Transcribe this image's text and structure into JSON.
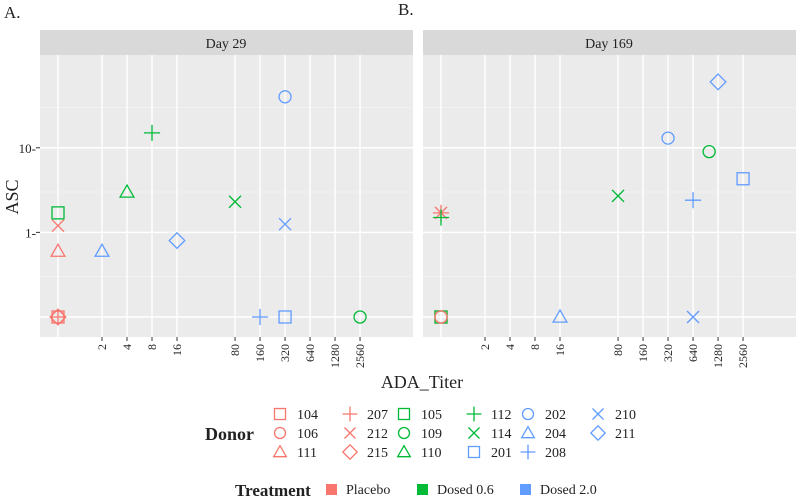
{
  "chart_data": {
    "type": "scatter",
    "figure": {
      "y_axis_title": "ASC",
      "x_axis_title": "ADA_Titer",
      "x_scale": "log2",
      "y_scale": "log10",
      "x_ticks": [
        2,
        4,
        8,
        16,
        80,
        160,
        320,
        640,
        1280,
        2560
      ],
      "x_tick_labels": [
        "2",
        "4",
        "8",
        "16",
        "80",
        "160",
        "320",
        "640",
        "1280",
        "2560"
      ],
      "y_ticks": [
        1,
        10
      ],
      "y_tick_labels": [
        "1-",
        "10-"
      ],
      "legend_placement": "bottom"
    },
    "panels": [
      {
        "letter": "A.",
        "strip": "Day 29",
        "points": [
          {
            "donor": "104",
            "x": 0,
            "y": 0.1
          },
          {
            "donor": "106",
            "x": 0,
            "y": 0.1
          },
          {
            "donor": "207",
            "x": 0,
            "y": 0.1
          },
          {
            "donor": "215",
            "x": 0,
            "y": 0.1
          },
          {
            "donor": "212",
            "x": 0,
            "y": 1.2
          },
          {
            "donor": "111",
            "x": 0,
            "y": 0.6
          },
          {
            "donor": "105",
            "x": 0,
            "y": 1.7
          },
          {
            "donor": "204",
            "x": 2,
            "y": 0.6
          },
          {
            "donor": "110",
            "x": 4,
            "y": 3.0
          },
          {
            "donor": "112",
            "x": 8,
            "y": 15
          },
          {
            "donor": "211",
            "x": 16,
            "y": 0.8
          },
          {
            "donor": "114",
            "x": 80,
            "y": 2.3
          },
          {
            "donor": "208",
            "x": 160,
            "y": 0.1
          },
          {
            "donor": "202",
            "x": 320,
            "y": 40
          },
          {
            "donor": "210",
            "x": 320,
            "y": 1.25
          },
          {
            "donor": "201",
            "x": 320,
            "y": 0.1
          },
          {
            "donor": "109",
            "x": 2560,
            "y": 0.1
          }
        ]
      },
      {
        "letter": "B.",
        "strip": "Day 169",
        "points": [
          {
            "donor": "104",
            "x": 0,
            "y": 0.1
          },
          {
            "donor": "105",
            "x": 0,
            "y": 0.1
          },
          {
            "donor": "106",
            "x": 0,
            "y": 0.1
          },
          {
            "donor": "207",
            "x": 0,
            "y": 1.7
          },
          {
            "donor": "212",
            "x": 0,
            "y": 1.7
          },
          {
            "donor": "112",
            "x": 0,
            "y": 1.5
          },
          {
            "donor": "204",
            "x": 16,
            "y": 0.1
          },
          {
            "donor": "114",
            "x": 80,
            "y": 2.7
          },
          {
            "donor": "202",
            "x": 320,
            "y": 13
          },
          {
            "donor": "210",
            "x": 640,
            "y": 0.1
          },
          {
            "donor": "208",
            "x": 640,
            "y": 2.4
          },
          {
            "donor": "109",
            "x": 1000,
            "y": 9
          },
          {
            "donor": "211",
            "x": 1280,
            "y": 60
          },
          {
            "donor": "201",
            "x": 2560,
            "y": 4.3
          }
        ]
      }
    ],
    "donor_legend": {
      "title": "Donor",
      "entries": [
        {
          "label": "104",
          "shape": "square",
          "group": "Placebo"
        },
        {
          "label": "106",
          "shape": "circle",
          "group": "Placebo"
        },
        {
          "label": "111",
          "shape": "triangle",
          "group": "Placebo"
        },
        {
          "label": "207",
          "shape": "plus",
          "group": "Placebo"
        },
        {
          "label": "212",
          "shape": "cross",
          "group": "Placebo"
        },
        {
          "label": "215",
          "shape": "diamond",
          "group": "Placebo"
        },
        {
          "label": "105",
          "shape": "square",
          "group": "Dosed 0.6"
        },
        {
          "label": "109",
          "shape": "circle",
          "group": "Dosed 0.6"
        },
        {
          "label": "110",
          "shape": "triangle",
          "group": "Dosed 0.6"
        },
        {
          "label": "112",
          "shape": "plus",
          "group": "Dosed 0.6"
        },
        {
          "label": "114",
          "shape": "cross",
          "group": "Dosed 0.6"
        },
        {
          "label": "201",
          "shape": "square",
          "group": "Dosed 2.0"
        },
        {
          "label": "202",
          "shape": "circle",
          "group": "Dosed 2.0"
        },
        {
          "label": "204",
          "shape": "triangle",
          "group": "Dosed 2.0"
        },
        {
          "label": "208",
          "shape": "plus",
          "group": "Dosed 2.0"
        },
        {
          "label": "210",
          "shape": "cross",
          "group": "Dosed 2.0"
        },
        {
          "label": "211",
          "shape": "diamond",
          "group": "Dosed 2.0"
        }
      ]
    },
    "treatment_legend": {
      "title": "Treatment",
      "entries": [
        {
          "label": "Placebo",
          "color": "#f8766d"
        },
        {
          "label": "Dosed 0.6",
          "color": "#00ba38"
        },
        {
          "label": "Dosed 2.0",
          "color": "#619cff"
        }
      ]
    }
  }
}
